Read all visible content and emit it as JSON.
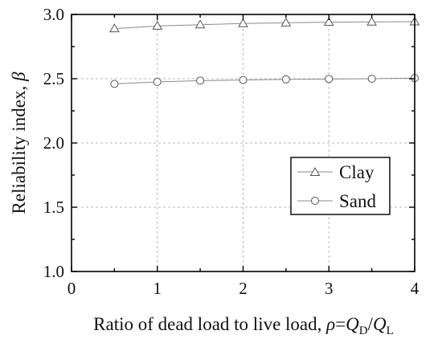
{
  "chart_data": {
    "type": "line",
    "xlabel": "Ratio of dead load to live load, ρ=QD/QL",
    "xlabel_parts": {
      "prefix": "Ratio of dead load to live load, ",
      "rho": "ρ",
      "eq": "=",
      "q1": "Q",
      "sub1": "D",
      "slash": "/",
      "q2": "Q",
      "sub2": "L"
    },
    "ylabel": "Reliability index, β",
    "ylabel_parts": {
      "prefix": "Reliability index, ",
      "beta": "β"
    },
    "xlim": [
      0,
      4
    ],
    "ylim": [
      1.0,
      3.0
    ],
    "x_ticks": [
      0,
      1,
      2,
      3,
      4
    ],
    "y_ticks": [
      1.0,
      1.5,
      2.0,
      2.5,
      3.0
    ],
    "x_tick_labels": [
      "0",
      "1",
      "2",
      "3",
      "4"
    ],
    "y_tick_labels": [
      "1.0",
      "1.5",
      "2.0",
      "2.5",
      "3.0"
    ],
    "grid": true,
    "legend_position": "right",
    "x": [
      0.5,
      1.0,
      1.5,
      2.0,
      2.5,
      3.0,
      3.5,
      4.0
    ],
    "series": [
      {
        "name": "Clay",
        "marker": "triangle",
        "values": [
          2.89,
          2.91,
          2.92,
          2.93,
          2.935,
          2.94,
          2.942,
          2.944
        ]
      },
      {
        "name": "Sand",
        "marker": "circle",
        "values": [
          2.46,
          2.475,
          2.485,
          2.49,
          2.495,
          2.498,
          2.5,
          2.505
        ]
      }
    ]
  }
}
